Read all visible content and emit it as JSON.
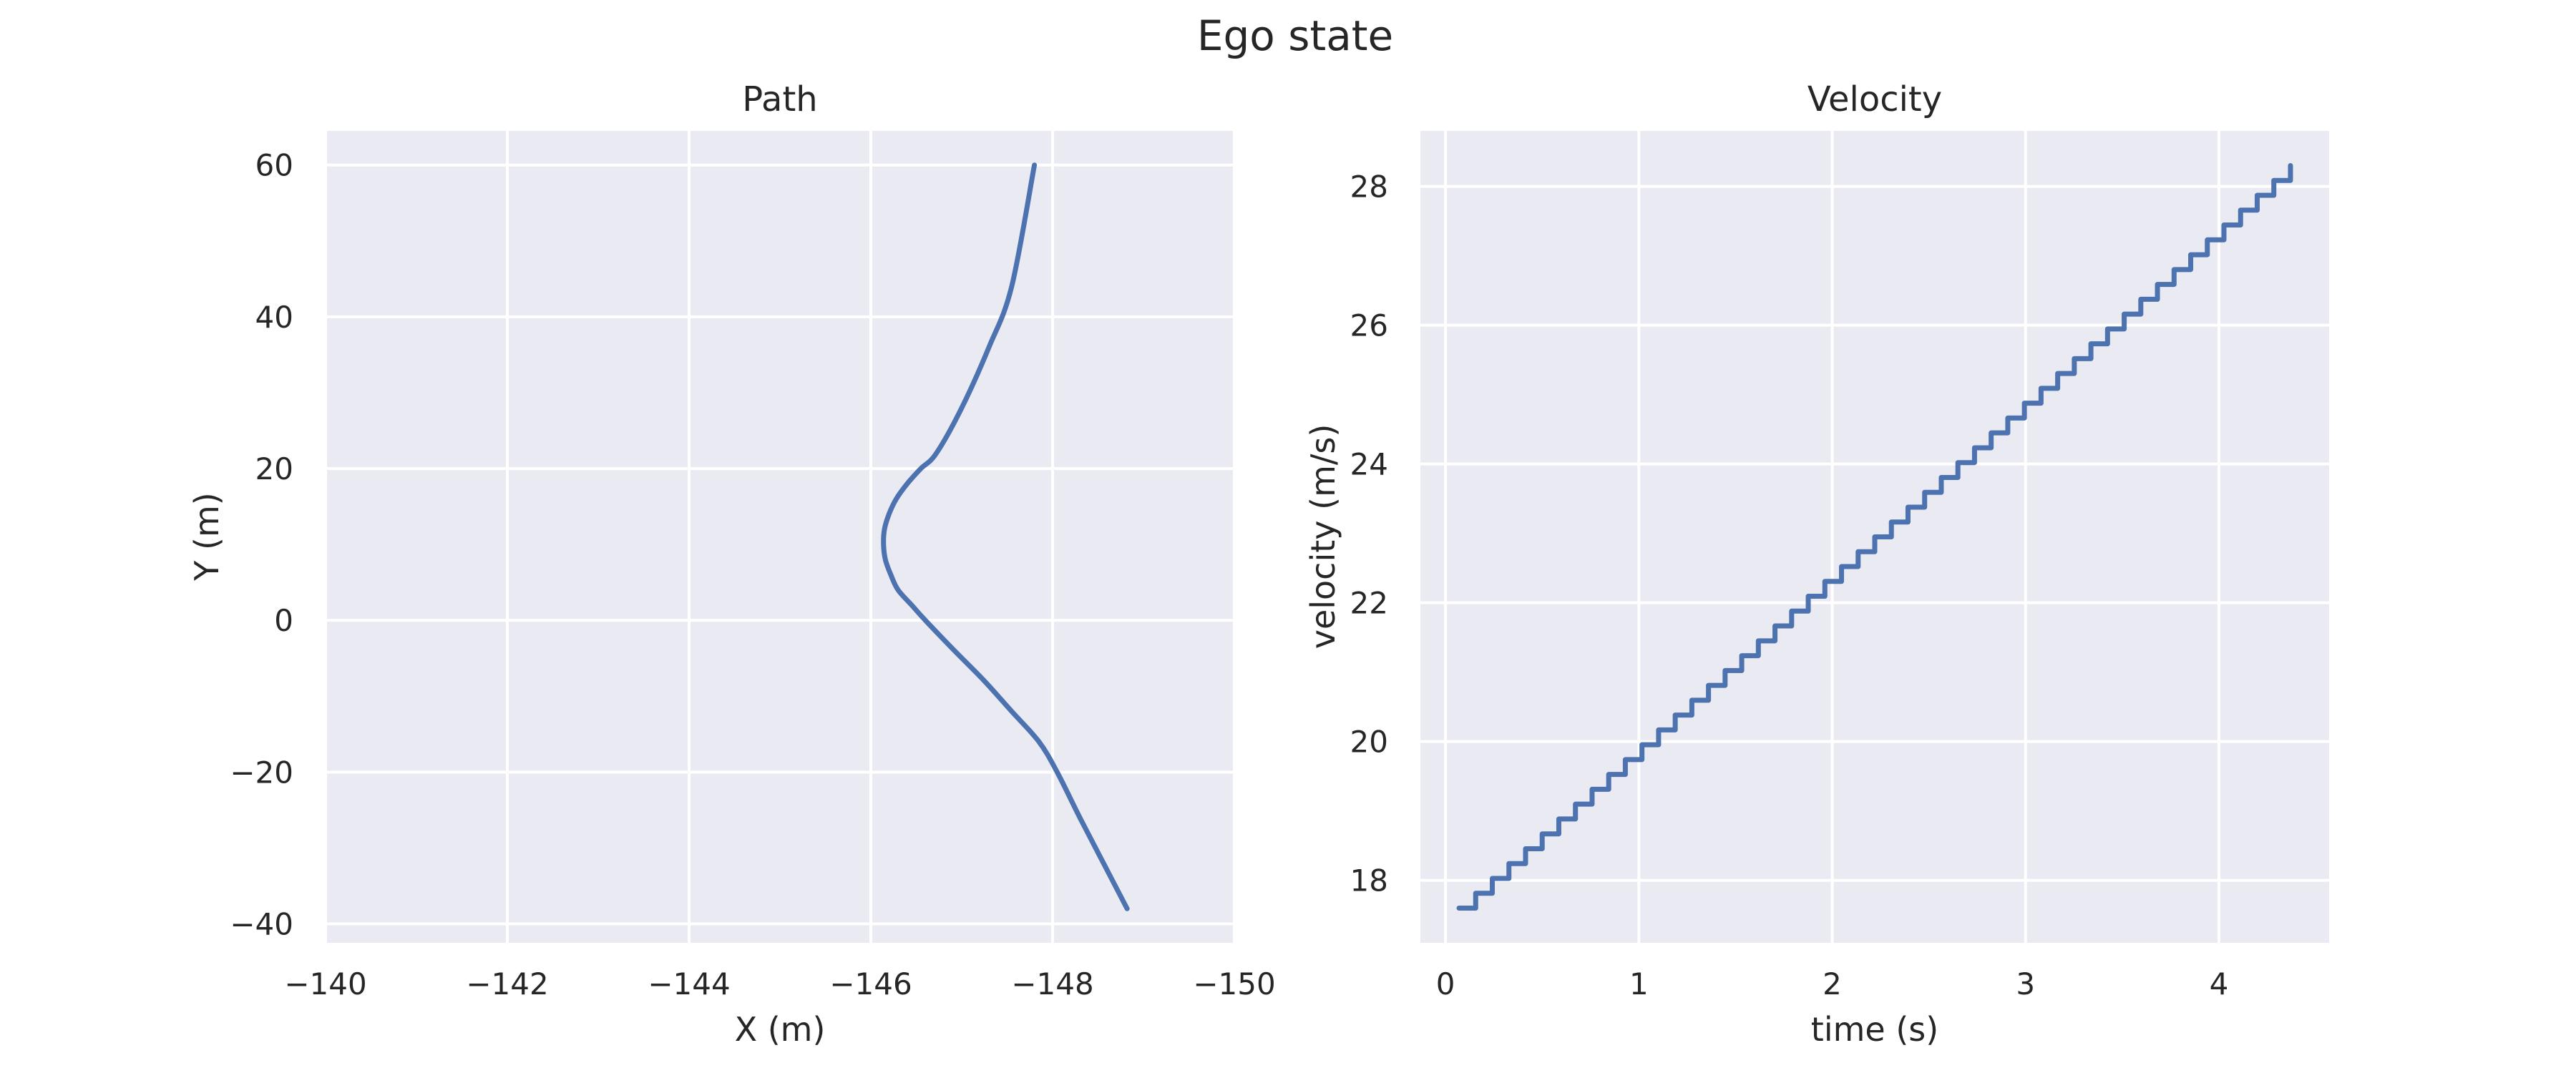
{
  "figure": {
    "title": "Ego state"
  },
  "chart_data": [
    {
      "type": "line",
      "title": "Path",
      "xlabel": "X (m)",
      "ylabel": "Y (m)",
      "xlim": [
        -140,
        -150
      ],
      "ylim": [
        -42.5,
        64.5
      ],
      "x_inverted": true,
      "grid": true,
      "xticks": [
        -140,
        -142,
        -144,
        -146,
        -148,
        -150
      ],
      "yticks": [
        -40,
        -20,
        0,
        20,
        40,
        60
      ],
      "xtick_labels": [
        "−140",
        "−142",
        "−144",
        "−146",
        "−148",
        "−150"
      ],
      "ytick_labels": [
        "−40",
        "−20",
        "0",
        "20",
        "40",
        "60"
      ],
      "series": [
        {
          "color": "#4c72b0",
          "x": [
            -148.82,
            -148.56,
            -148.3,
            -148.05,
            -147.85,
            -147.55,
            -147.25,
            -146.92,
            -146.6,
            -146.45,
            -146.3,
            -146.22,
            -146.16,
            -146.14,
            -146.15,
            -146.2,
            -146.28,
            -146.4,
            -146.55,
            -146.72,
            -147.0,
            -147.3,
            -147.55,
            -147.8
          ],
          "y": [
            -38,
            -32,
            -26,
            -20,
            -16,
            -12,
            -8,
            -4,
            0,
            2,
            4,
            6,
            8,
            10,
            12,
            14,
            16,
            18,
            20,
            22,
            28,
            36,
            44,
            60
          ]
        }
      ]
    },
    {
      "type": "line",
      "title": "Velocity",
      "xlabel": "time (s)",
      "ylabel": "velocity (m/s)",
      "xlim": [
        -0.13,
        4.57
      ],
      "ylim": [
        17.1,
        28.8
      ],
      "grid": true,
      "xticks": [
        0,
        1,
        2,
        3,
        4
      ],
      "yticks": [
        18,
        20,
        22,
        24,
        26,
        28
      ],
      "xtick_labels": [
        "0",
        "1",
        "2",
        "3",
        "4"
      ],
      "ytick_labels": [
        "18",
        "20",
        "22",
        "24",
        "26",
        "28"
      ],
      "step": {
        "start_time": 0.07,
        "end_time": 4.37,
        "start_velocity": 17.6,
        "end_velocity": 28.3,
        "steps": 50
      },
      "series": [
        {
          "color": "#4c72b0"
        }
      ]
    }
  ]
}
